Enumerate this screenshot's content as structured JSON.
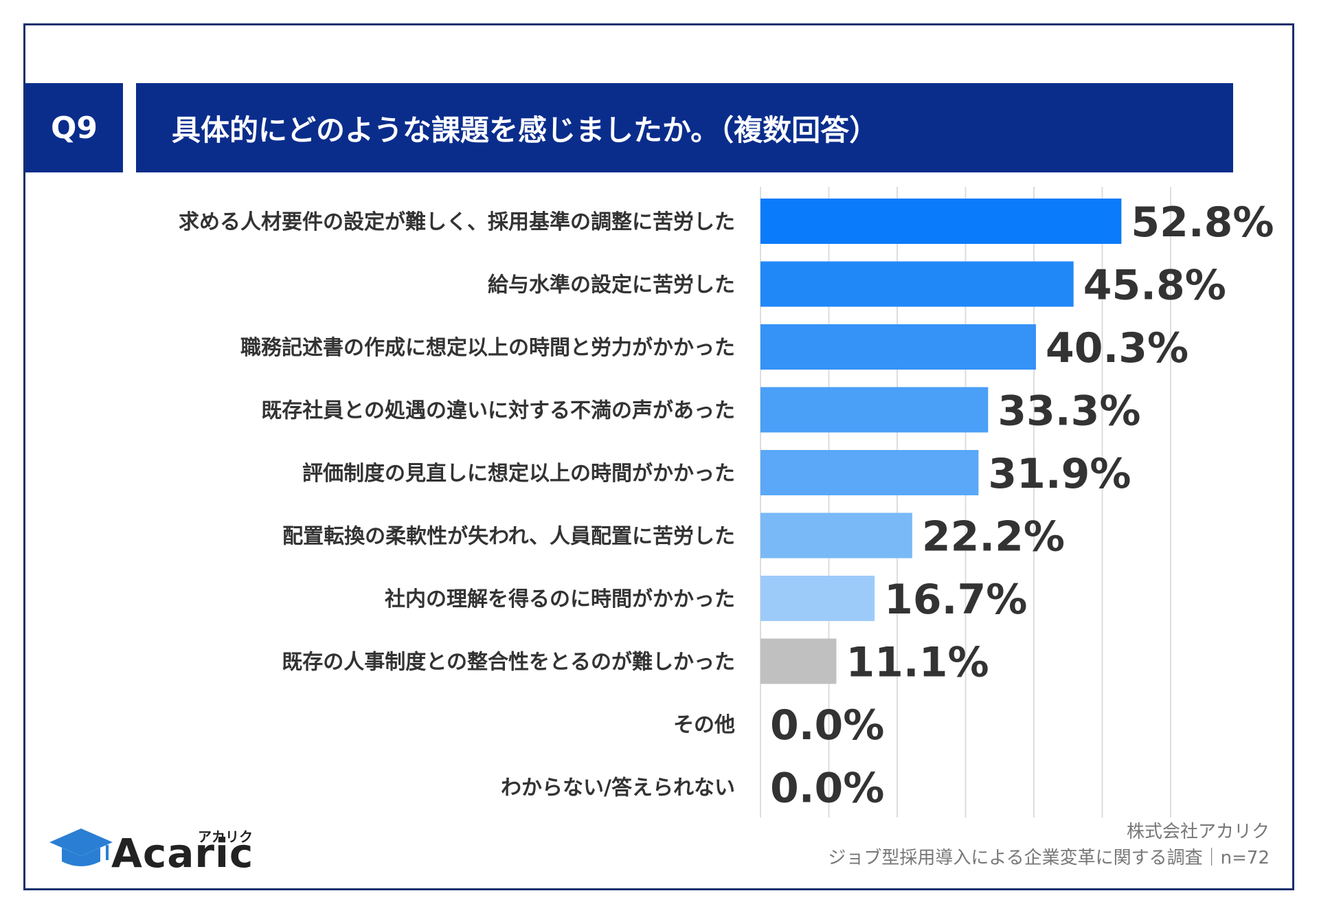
{
  "header": {
    "question_number": "Q9",
    "question_text": "具体的にどのような課題を感じましたか。（複数回答）"
  },
  "chart_data": {
    "type": "bar",
    "orientation": "horizontal",
    "title": "具体的にどのような課題を感じましたか。（複数回答）",
    "categories": [
      "求める人材要件の設定が難しく、採用基準の調整に苦労した",
      "給与水準の設定に苦労した",
      "職務記述書の作成に想定以上の時間と労力がかかった",
      "既存社員との処遇の違いに対する不満の声があった",
      "評価制度の見直しに想定以上の時間がかかった",
      "配置転換の柔軟性が失われ、人員配置に苦労した",
      "社内の理解を得るのに時間がかかった",
      "既存の人事制度との整合性をとるのが難しかった",
      "その他",
      "わからない/答えられない"
    ],
    "values": [
      52.8,
      45.8,
      40.3,
      33.3,
      31.9,
      22.2,
      16.7,
      11.1,
      0.0,
      0.0
    ],
    "value_labels": [
      "52.8%",
      "45.8%",
      "40.3%",
      "33.3%",
      "31.9%",
      "22.2%",
      "16.7%",
      "11.1%",
      "0.0%",
      "0.0%"
    ],
    "bar_colors": [
      "#0a7bfa",
      "#2188f8",
      "#3592f7",
      "#4a9ff7",
      "#5aa8f7",
      "#7ab9f7",
      "#9dcbf9",
      "#c0c0c0",
      "#c0c0c0",
      "#c0c0c0"
    ],
    "xlim": [
      0,
      60
    ],
    "grid": true,
    "unit": "%"
  },
  "footer": {
    "logo_name": "Acaric",
    "logo_kana": "アカリク",
    "company": "株式会社アカリク",
    "survey": "ジョブ型採用導入による企業変革に関する調査｜n=72"
  }
}
